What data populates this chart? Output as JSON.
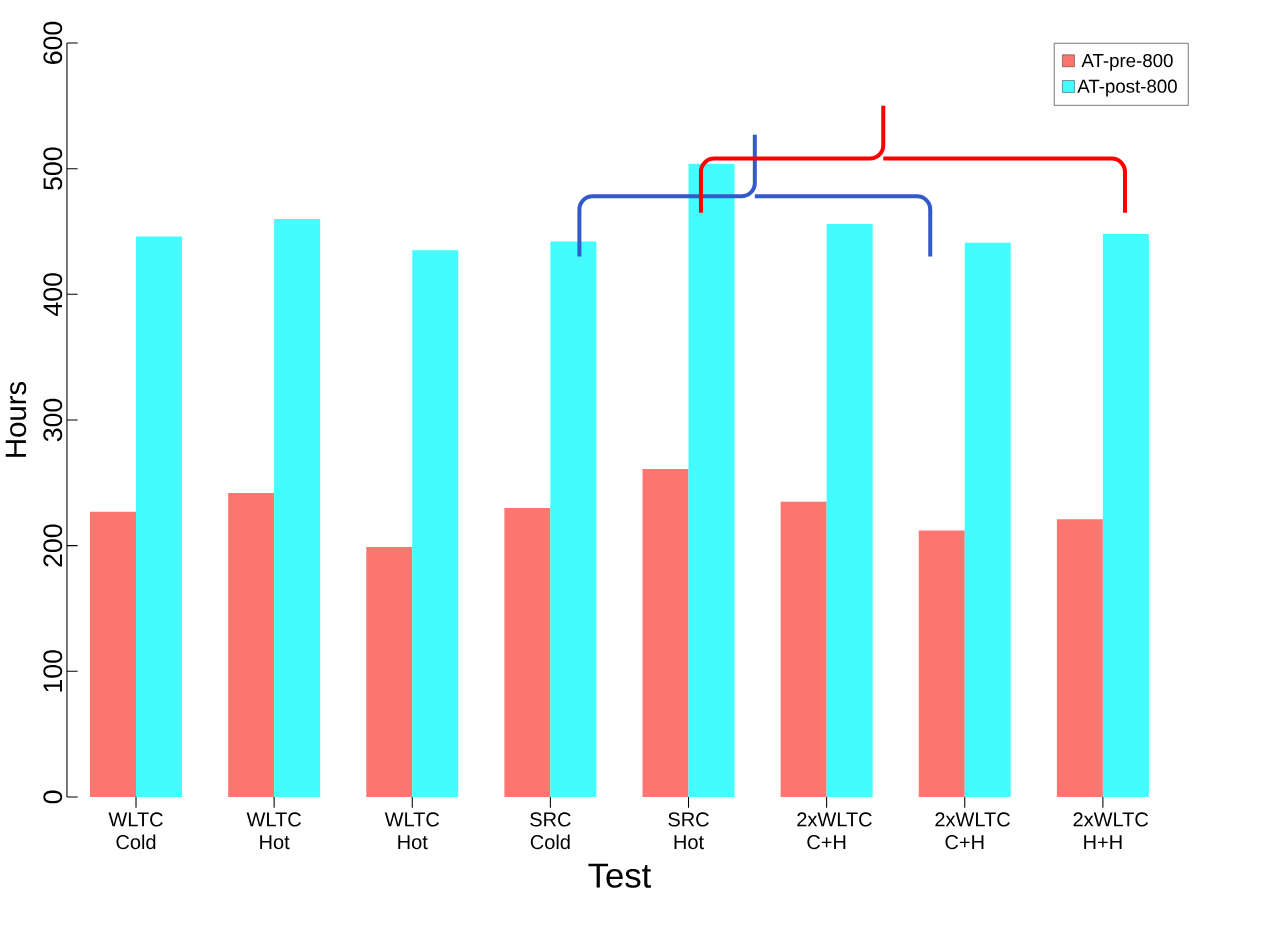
{
  "chart_data": {
    "type": "bar",
    "xlabel": "Test",
    "ylabel": "Hours",
    "categories": [
      "WLTC Cold",
      "WLTC Hot",
      "WLTC Hot",
      "SRC Cold",
      "SRC Hot",
      "2xWLTC C+H",
      "2xWLTC C+H",
      "2xWLTC H+H"
    ],
    "series": [
      {
        "name": "AT-pre-800",
        "color": "#fd7670",
        "values": [
          227,
          242,
          199,
          230,
          261,
          235,
          212,
          221
        ]
      },
      {
        "name": "AT-post-800",
        "color": "#44fbfd",
        "values": [
          446,
          460,
          435,
          442,
          504,
          456,
          441,
          448
        ]
      }
    ],
    "ylim": [
      0,
      600
    ],
    "yticks": [
      0,
      100,
      200,
      300,
      400,
      500,
      600
    ],
    "legend": "top right"
  }
}
